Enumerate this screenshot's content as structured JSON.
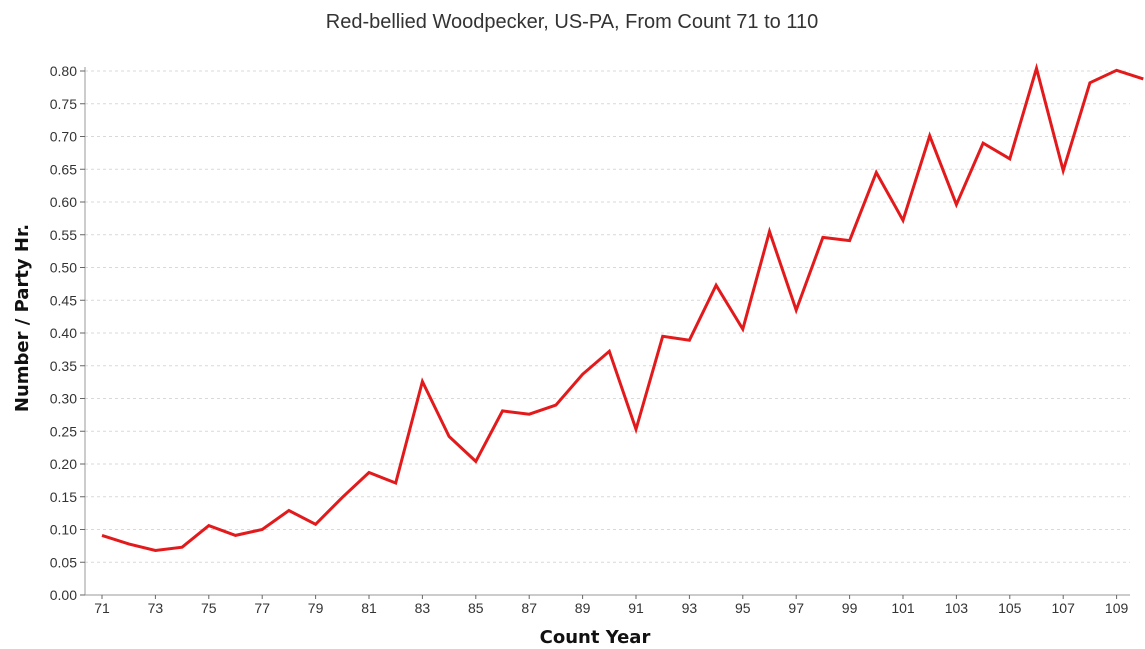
{
  "chart_data": {
    "type": "line",
    "title": "Red-bellied Woodpecker, US-PA,  From Count 71 to 110",
    "xlabel": "Count Year",
    "ylabel": "Number / Party Hr.",
    "xlim": [
      71,
      110
    ],
    "ylim": [
      0,
      0.8
    ],
    "y_ticks": [
      "0.00",
      "0.05",
      "0.10",
      "0.15",
      "0.20",
      "0.25",
      "0.30",
      "0.35",
      "0.40",
      "0.45",
      "0.50",
      "0.55",
      "0.60",
      "0.65",
      "0.70",
      "0.75",
      "0.80"
    ],
    "x_ticks": [
      "71",
      "73",
      "75",
      "77",
      "79",
      "81",
      "83",
      "85",
      "87",
      "89",
      "91",
      "93",
      "95",
      "97",
      "99",
      "101",
      "103",
      "105",
      "107",
      "109"
    ],
    "grid": "horizontal dashed",
    "legend": "none",
    "series": [
      {
        "color": "#e31a1c",
        "x": [
          71,
          72,
          73,
          74,
          75,
          76,
          77,
          78,
          79,
          80,
          81,
          82,
          83,
          84,
          85,
          86,
          87,
          88,
          89,
          90,
          91,
          92,
          93,
          94,
          95,
          96,
          97,
          98,
          99,
          100,
          101,
          102,
          103,
          104,
          105,
          106,
          107,
          108,
          109,
          110
        ],
        "values": [
          0.091,
          0.078,
          0.068,
          0.073,
          0.106,
          0.091,
          0.1,
          0.129,
          0.108,
          0.149,
          0.187,
          0.171,
          0.326,
          0.242,
          0.204,
          0.281,
          0.276,
          0.29,
          0.337,
          0.372,
          0.253,
          0.395,
          0.389,
          0.473,
          0.406,
          0.555,
          0.435,
          0.546,
          0.541,
          0.645,
          0.572,
          0.701,
          0.596,
          0.69,
          0.666,
          0.804,
          0.648,
          0.782,
          0.801,
          0.788
        ]
      }
    ]
  }
}
